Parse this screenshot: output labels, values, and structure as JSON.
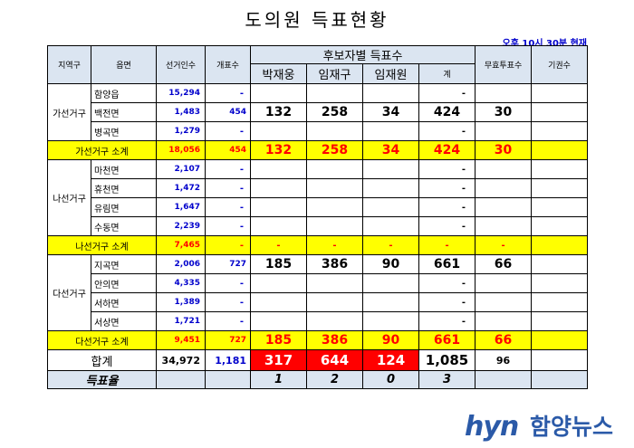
{
  "title": "도의원 득표현황",
  "timestamp": "오후 10시 30분 현재",
  "headers": {
    "region": "지역구",
    "town": "읍면",
    "electorate": "선거인수",
    "opened": "개표수",
    "candidate_group": "후보자별 득표수",
    "candidates": [
      "박재웅",
      "임재구",
      "임재원"
    ],
    "sum": "계",
    "invalid": "무효투표수",
    "abstain": "기권수"
  },
  "districts": [
    {
      "name": "가선거구",
      "rows": [
        {
          "town": "함양읍",
          "electorate": "15,294",
          "opened": "-",
          "votes": [
            "",
            "",
            ""
          ],
          "sum": "-",
          "invalid": "",
          "abstain": ""
        },
        {
          "town": "백전면",
          "electorate": "1,483",
          "opened": "454",
          "votes": [
            "132",
            "258",
            "34"
          ],
          "sum": "424",
          "invalid": "30",
          "abstain": ""
        },
        {
          "town": "병곡면",
          "electorate": "1,279",
          "opened": "-",
          "votes": [
            "",
            "",
            ""
          ],
          "sum": "-",
          "invalid": "",
          "abstain": ""
        }
      ],
      "subtotal": {
        "label": "가선거구 소계",
        "electorate": "18,056",
        "opened": "454",
        "votes": [
          "132",
          "258",
          "34"
        ],
        "sum": "424",
        "invalid": "30",
        "abstain": ""
      }
    },
    {
      "name": "나선거구",
      "rows": [
        {
          "town": "마천면",
          "electorate": "2,107",
          "opened": "-",
          "votes": [
            "",
            "",
            ""
          ],
          "sum": "-",
          "invalid": "",
          "abstain": ""
        },
        {
          "town": "휴천면",
          "electorate": "1,472",
          "opened": "-",
          "votes": [
            "",
            "",
            ""
          ],
          "sum": "-",
          "invalid": "",
          "abstain": ""
        },
        {
          "town": "유림면",
          "electorate": "1,647",
          "opened": "-",
          "votes": [
            "",
            "",
            ""
          ],
          "sum": "-",
          "invalid": "",
          "abstain": ""
        },
        {
          "town": "수동면",
          "electorate": "2,239",
          "opened": "-",
          "votes": [
            "",
            "",
            ""
          ],
          "sum": "-",
          "invalid": "",
          "abstain": ""
        }
      ],
      "subtotal": {
        "label": "나선거구 소계",
        "electorate": "7,465",
        "opened": "-",
        "votes": [
          "-",
          "-",
          "-"
        ],
        "sum": "-",
        "invalid": "-",
        "abstain": ""
      }
    },
    {
      "name": "다선거구",
      "rows": [
        {
          "town": "지곡면",
          "electorate": "2,006",
          "opened": "727",
          "votes": [
            "185",
            "386",
            "90"
          ],
          "sum": "661",
          "invalid": "66",
          "abstain": ""
        },
        {
          "town": "안의면",
          "electorate": "4,335",
          "opened": "-",
          "votes": [
            "",
            "",
            ""
          ],
          "sum": "-",
          "invalid": "",
          "abstain": ""
        },
        {
          "town": "서하면",
          "electorate": "1,389",
          "opened": "-",
          "votes": [
            "",
            "",
            ""
          ],
          "sum": "-",
          "invalid": "",
          "abstain": ""
        },
        {
          "town": "서상면",
          "electorate": "1,721",
          "opened": "-",
          "votes": [
            "",
            "",
            ""
          ],
          "sum": "-",
          "invalid": "",
          "abstain": ""
        }
      ],
      "subtotal": {
        "label": "다선거구 소계",
        "electorate": "9,451",
        "opened": "727",
        "votes": [
          "185",
          "386",
          "90"
        ],
        "sum": "661",
        "invalid": "66",
        "abstain": ""
      }
    }
  ],
  "total": {
    "label": "합계",
    "electorate": "34,972",
    "opened": "1,181",
    "votes": [
      "317",
      "644",
      "124"
    ],
    "sum": "1,085",
    "invalid": "96",
    "abstain": ""
  },
  "rank": {
    "label": "득표율",
    "values": [
      "1",
      "2",
      "0"
    ],
    "sum": "3"
  },
  "logo": {
    "mark": "hyn",
    "name": "함양뉴스"
  },
  "colors": {
    "subtotal_bg": "#ffff00",
    "highlight": "#ff0000",
    "header_bg": "#dbe5f1",
    "blue": "#0000cc",
    "logo": "#2b5aa8"
  }
}
